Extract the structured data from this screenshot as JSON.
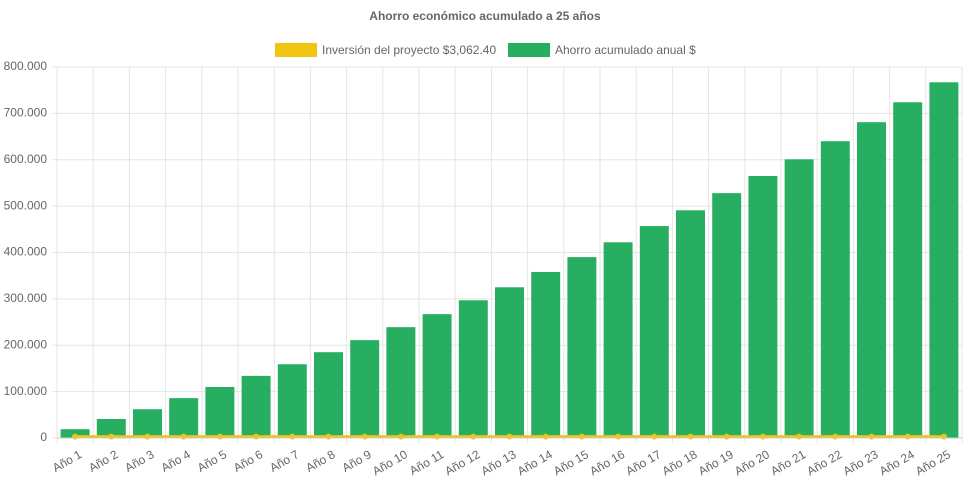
{
  "chart_data": {
    "type": "bar",
    "title": "Ahorro económico acumulado a 25 años",
    "categories": [
      "Año 1",
      "Año 2",
      "Año 3",
      "Año 4",
      "Año 5",
      "Año 6",
      "Año 7",
      "Año 8",
      "Año 9",
      "Año 10",
      "Año 11",
      "Año 12",
      "Año 13",
      "Año 14",
      "Año 15",
      "Año 16",
      "Año 17",
      "Año 18",
      "Año 19",
      "Año 20",
      "Año 21",
      "Año 22",
      "Año 23",
      "Año 24",
      "Año 25"
    ],
    "series": [
      {
        "name": "Inversión del proyecto $3,062.40",
        "type": "line",
        "color": "#f1c40f",
        "values": [
          3062.4,
          3062.4,
          3062.4,
          3062.4,
          3062.4,
          3062.4,
          3062.4,
          3062.4,
          3062.4,
          3062.4,
          3062.4,
          3062.4,
          3062.4,
          3062.4,
          3062.4,
          3062.4,
          3062.4,
          3062.4,
          3062.4,
          3062.4,
          3062.4,
          3062.4,
          3062.4,
          3062.4,
          3062.4
        ]
      },
      {
        "name": "Ahorro acumulado anual $",
        "type": "bar",
        "color": "#27ae60",
        "values": [
          19000,
          41000,
          62000,
          86000,
          110000,
          134000,
          159000,
          185000,
          211000,
          239000,
          267000,
          297000,
          325000,
          358000,
          390000,
          422000,
          457000,
          491000,
          528000,
          565000,
          601000,
          640000,
          681000,
          724000,
          767000
        ]
      }
    ],
    "ylim": [
      0,
      800000
    ],
    "yticks": [
      0,
      {
        "value": 100000,
        "label": "100.000"
      },
      {
        "value": 200000,
        "label": "200.000"
      },
      {
        "value": 300000,
        "label": "300.000"
      },
      {
        "value": 400000,
        "label": "400.000"
      },
      {
        "value": 500000,
        "label": "500.000"
      },
      {
        "value": 600000,
        "label": "600.000"
      },
      {
        "value": 700000,
        "label": "700.000"
      },
      {
        "value": 800000,
        "label": "800.000"
      }
    ],
    "grid": true
  }
}
